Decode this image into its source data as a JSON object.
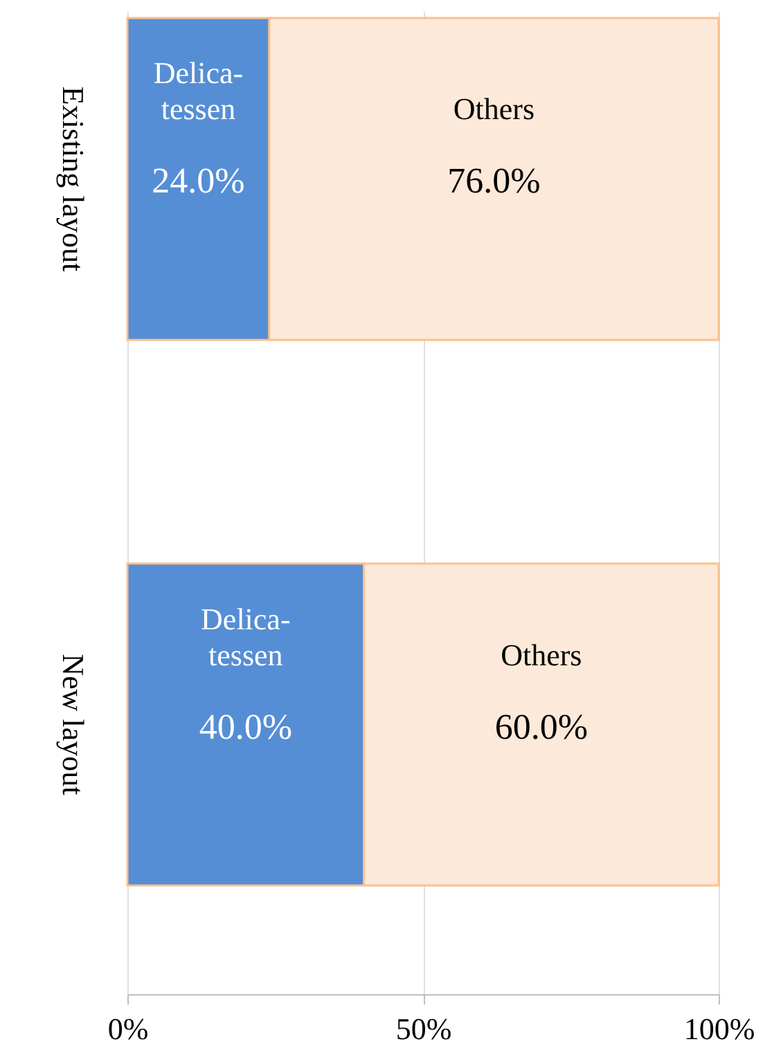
{
  "chart_data": {
    "type": "bar",
    "orientation": "horizontal",
    "stacked": true,
    "categories": [
      "Existing layout",
      "New layout"
    ],
    "series": [
      {
        "name": "Delica- tessen",
        "color": "#558ed5",
        "values": [
          24,
          40
        ],
        "value_labels": [
          "24.0%",
          "40.0%"
        ]
      },
      {
        "name": "Others",
        "color": "#fde9d9",
        "values": [
          76,
          60
        ],
        "value_labels": [
          "76.0%",
          "60.0%"
        ]
      }
    ],
    "xlim": [
      0,
      100
    ],
    "xticks": [
      {
        "value": 0,
        "label": "0%"
      },
      {
        "value": 50,
        "label": "50%"
      },
      {
        "value": 100,
        "label": "100%"
      }
    ],
    "grid": "x",
    "legend": false
  }
}
